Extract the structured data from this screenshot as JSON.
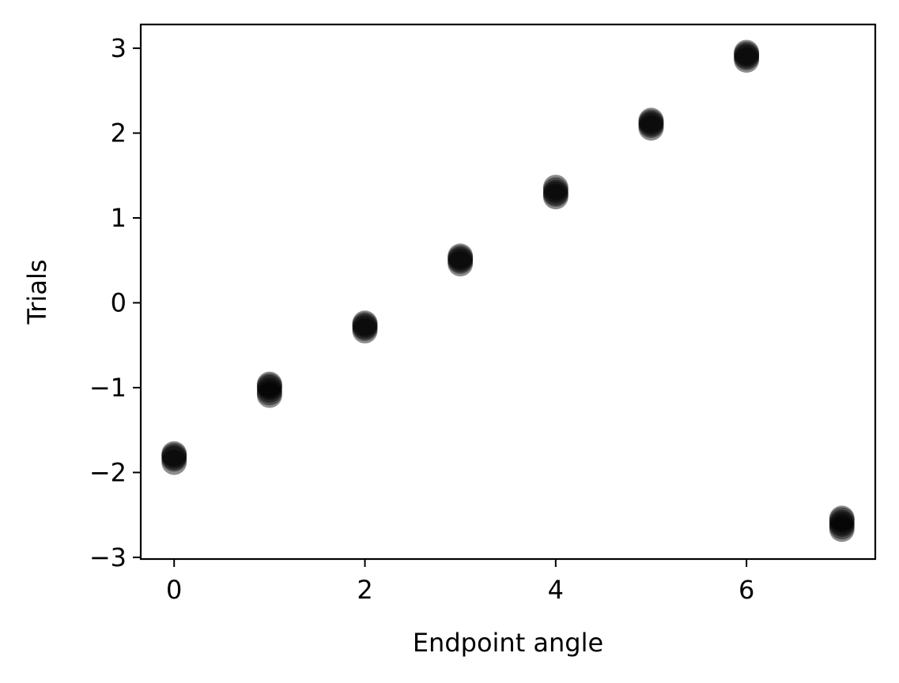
{
  "chart_data": {
    "type": "scatter",
    "title": "",
    "xlabel": "Endpoint angle",
    "ylabel": "Trials",
    "xlim": [
      -0.35,
      7.35
    ],
    "ylim": [
      -3.02,
      3.28
    ],
    "xticks": [
      0,
      2,
      4,
      6
    ],
    "yticks": [
      -3,
      -2,
      -1,
      0,
      1,
      2,
      3
    ],
    "grid": false,
    "legend": "none",
    "marker_color": "#000000",
    "series": [
      {
        "x": [
          0,
          0,
          0,
          0,
          0,
          1,
          1,
          1,
          1,
          1,
          1,
          2,
          2,
          2,
          2,
          2,
          3,
          3,
          3,
          3,
          3,
          4,
          4,
          4,
          4,
          4,
          5,
          5,
          5,
          5,
          5,
          6,
          6,
          6,
          6,
          6,
          7,
          7,
          7,
          7,
          7,
          7
        ],
        "y": [
          -1.88,
          -1.84,
          -1.82,
          -1.8,
          -1.78,
          -1.09,
          -1.06,
          -1.03,
          -1.0,
          -0.98,
          -0.96,
          -0.33,
          -0.3,
          -0.28,
          -0.26,
          -0.24,
          0.46,
          0.49,
          0.51,
          0.53,
          0.55,
          1.25,
          1.28,
          1.3,
          1.33,
          1.36,
          2.06,
          2.09,
          2.11,
          2.13,
          2.15,
          2.86,
          2.89,
          2.91,
          2.93,
          2.95,
          -2.67,
          -2.64,
          -2.61,
          -2.59,
          -2.56,
          -2.54
        ]
      }
    ],
    "x_tick_labels": [
      "0",
      "2",
      "4",
      "6"
    ],
    "y_tick_labels": [
      "−3",
      "−2",
      "−1",
      "0",
      "1",
      "2",
      "3"
    ]
  }
}
